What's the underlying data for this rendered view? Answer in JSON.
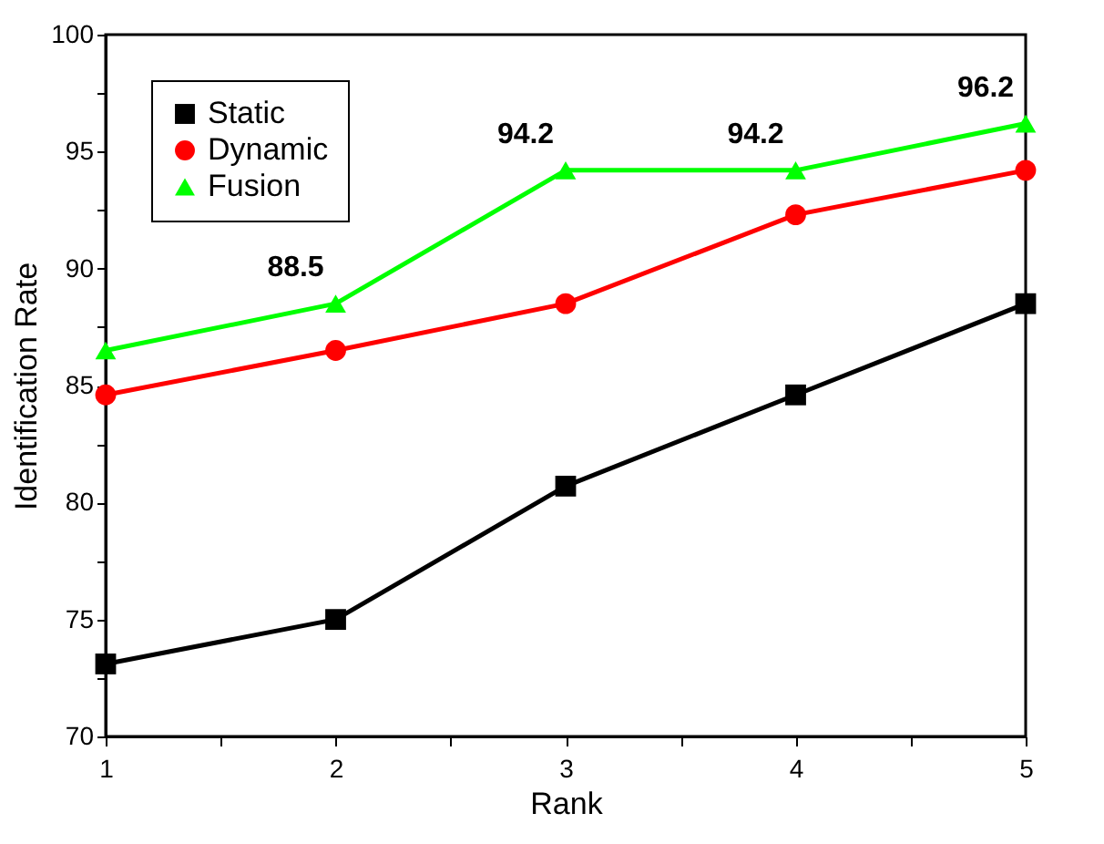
{
  "chart_data": {
    "type": "line",
    "xlabel": "Rank",
    "ylabel": "Identification Rate",
    "x": [
      1,
      2,
      3,
      4,
      5
    ],
    "series": [
      {
        "name": "Static",
        "color": "#000000",
        "marker": "square",
        "values": [
          73.1,
          75.0,
          80.7,
          84.6,
          88.5
        ]
      },
      {
        "name": "Dynamic",
        "color": "#ff0000",
        "marker": "circle",
        "values": [
          84.6,
          86.5,
          88.5,
          92.3,
          94.2
        ]
      },
      {
        "name": "Fusion",
        "color": "#00ff00",
        "marker": "triangle",
        "values": [
          86.5,
          88.5,
          94.2,
          94.2,
          96.2
        ]
      }
    ],
    "annotations": [
      {
        "text": "88.5",
        "x": 2,
        "y": 88.5
      },
      {
        "text": "94.2",
        "x": 3,
        "y": 94.2
      },
      {
        "text": "94.2",
        "x": 4,
        "y": 94.2
      },
      {
        "text": "96.2",
        "x": 5,
        "y": 96.2
      }
    ],
    "xlim": [
      1,
      5
    ],
    "xticks": [
      1,
      {
        "value": 1.5,
        "label": null
      },
      2,
      {
        "value": 2.5,
        "label": null
      },
      3,
      {
        "value": 3.5,
        "label": null
      },
      4,
      {
        "value": 4.5,
        "label": null
      },
      5
    ],
    "ylim": [
      70,
      100
    ],
    "yticks": [
      70,
      {
        "value": 72.5,
        "label": null
      },
      75,
      {
        "value": 77.5,
        "label": null
      },
      80,
      {
        "value": 82.5,
        "label": null
      },
      85,
      {
        "value": 87.5,
        "label": null
      },
      90,
      {
        "value": 92.5,
        "label": null
      },
      95,
      {
        "value": 97.5,
        "label": null
      },
      100
    ],
    "grid": false,
    "legend": "top left",
    "line_style": "solid"
  }
}
